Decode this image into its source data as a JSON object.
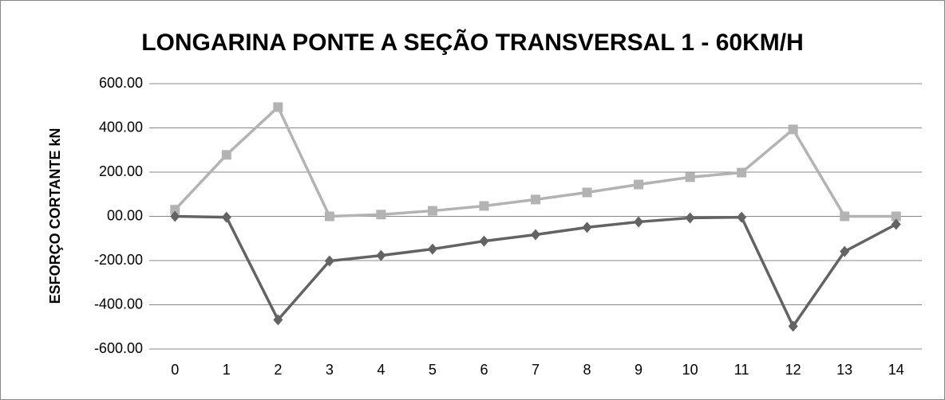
{
  "chart_data": {
    "type": "line",
    "title": "LONGARINA PONTE A  SEÇÃO TRANSVERSAL 1 - 60KM/H",
    "y_label": "ESFORÇO CORTANTE kN",
    "categories": [
      "0",
      "1",
      "2",
      "3",
      "4",
      "5",
      "6",
      "7",
      "8",
      "9",
      "10",
      "11",
      "12",
      "13",
      "14"
    ],
    "series": [
      {
        "color": "#b3b3b3",
        "marker": "square",
        "values": [
          30,
          278,
          494,
          0,
          8,
          25,
          47,
          76,
          108,
          144,
          177,
          198,
          393,
          0,
          0
        ]
      },
      {
        "color": "#636363",
        "marker": "diamond",
        "values": [
          0,
          -4,
          -468,
          -202,
          -177,
          -148,
          -112,
          -83,
          -50,
          -25,
          -7,
          -4,
          -497,
          -159,
          -36
        ]
      }
    ],
    "ylim": [
      -600,
      600
    ],
    "yticks": [
      {
        "value": -600,
        "label": "-600.00"
      },
      {
        "value": -400,
        "label": "-400.00"
      },
      {
        "value": -200,
        "label": "-200.00"
      },
      {
        "value": 0,
        "label": "00.00"
      },
      {
        "value": 200,
        "label": "200.00"
      },
      {
        "value": 400,
        "label": "400.00"
      },
      {
        "value": 600,
        "label": "600.00"
      }
    ],
    "grid": true
  }
}
